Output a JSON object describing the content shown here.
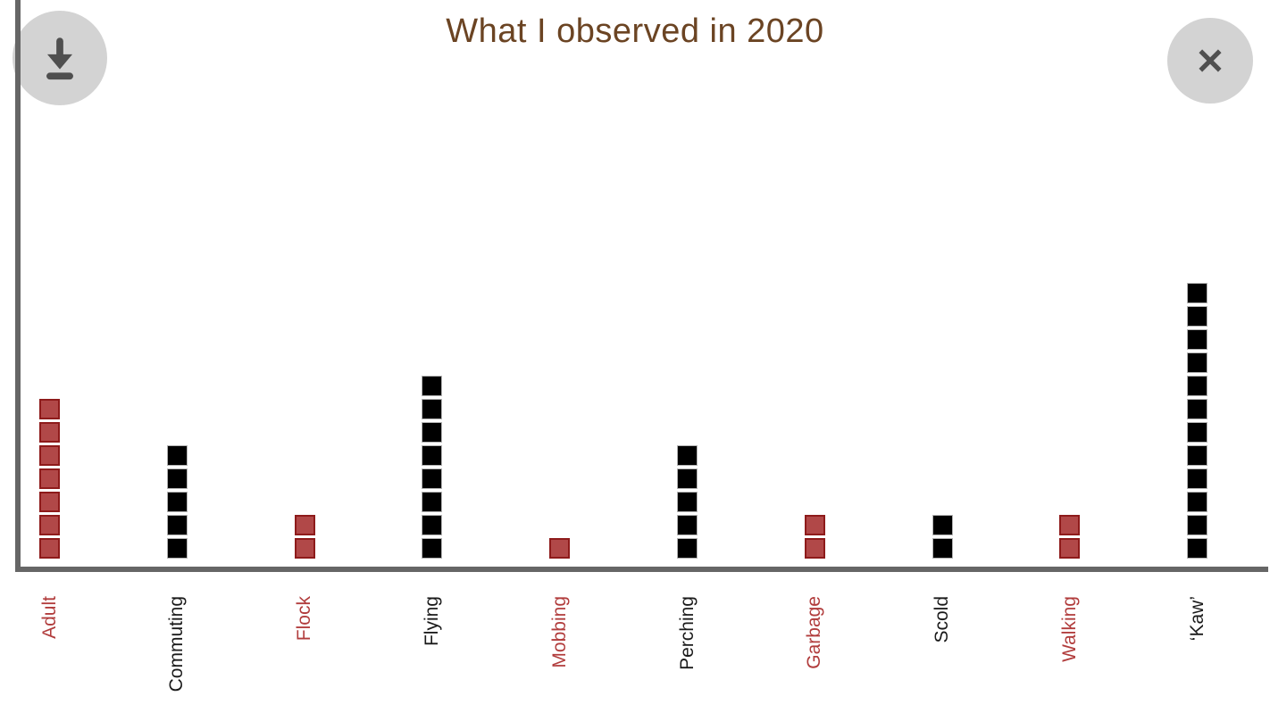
{
  "header": {
    "title": "What I observed in 2020"
  },
  "colors": {
    "title_text": "#6b4423",
    "axis_line": "#666666",
    "red_square_fill": "#b14848",
    "red_square_border": "#8e1b1b",
    "red_label_text": "#b13c3c",
    "black_square_fill": "#000000",
    "black_square_border": "#b3b3b3",
    "black_label_text": "#1a1a1a",
    "button_circle": "#d3d3d3",
    "button_glyph": "#4f4f4f"
  },
  "chart_data": {
    "type": "bar",
    "subtype": "unit-square-pictograph",
    "title": "What I observed in 2020",
    "categories": [
      "Adult",
      "Commuting",
      "Flock",
      "Flying",
      "Mobbing",
      "Perching",
      "Garbage",
      "Scold",
      "Walking",
      "‘Kaw’"
    ],
    "values": [
      7,
      5,
      2,
      8,
      1,
      5,
      2,
      2,
      2,
      12
    ],
    "colors_by_category": [
      "red",
      "black",
      "red",
      "black",
      "red",
      "black",
      "red",
      "black",
      "red",
      "black"
    ],
    "unit_value": 1,
    "total_units": 46,
    "xlabel": "",
    "ylabel": "",
    "ylim": [
      0,
      12
    ],
    "grid": false,
    "legend": "none",
    "tick_label_rotation_deg": -90
  }
}
